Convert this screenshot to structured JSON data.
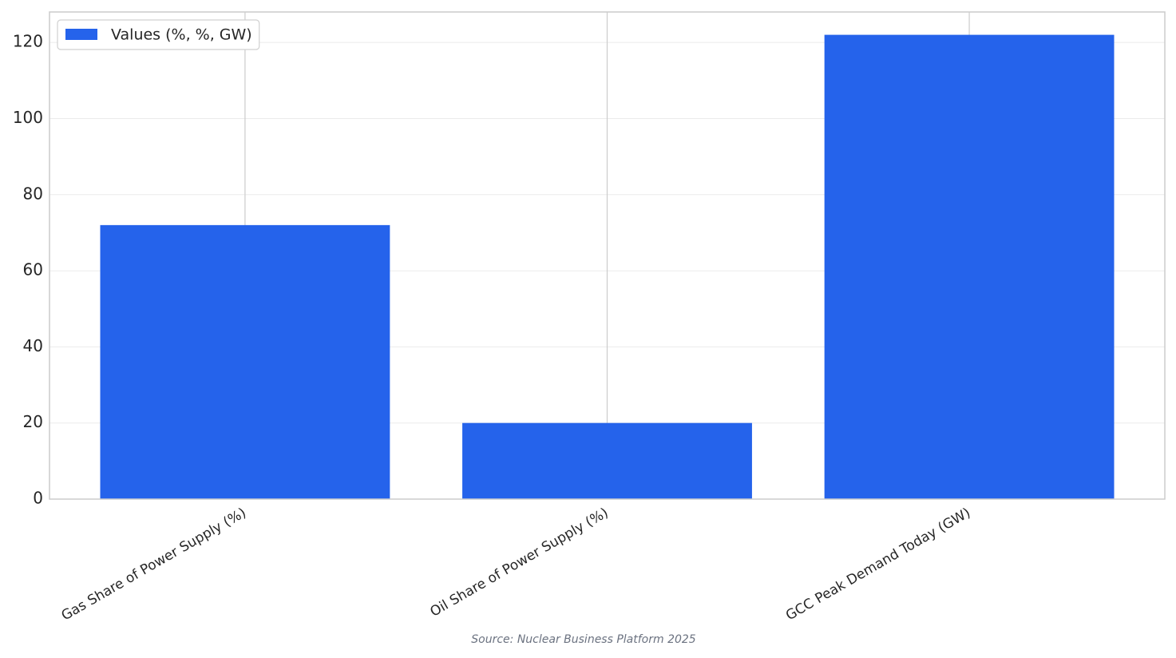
{
  "chart_data": {
    "type": "bar",
    "categories": [
      "Gas Share of Power Supply (%)",
      "Oil Share of Power Supply (%)",
      "GCC Peak Demand Today (GW)"
    ],
    "series": [
      {
        "name": "Values (%, %, GW)",
        "color": "#2563eb",
        "values": [
          72,
          20,
          122
        ]
      }
    ],
    "ylim": [
      0,
      128
    ],
    "yticks": [
      0,
      20,
      40,
      60,
      80,
      100,
      120
    ],
    "grid": true,
    "legend": "upper-left",
    "source": "Source: Nuclear Business Platform 2025"
  }
}
